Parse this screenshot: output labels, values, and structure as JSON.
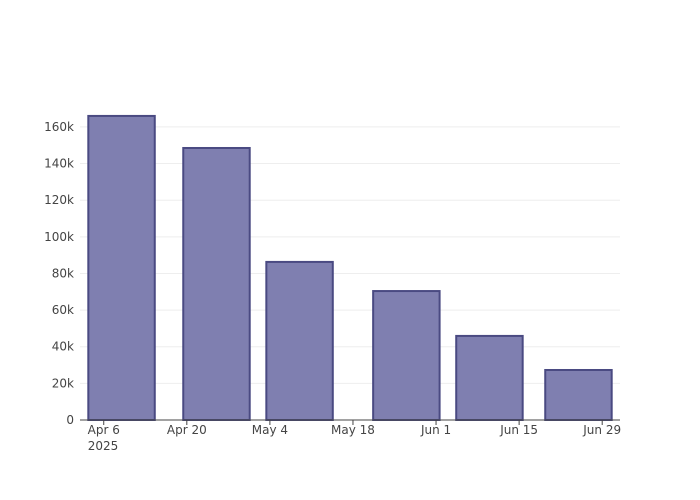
{
  "chart_data": {
    "type": "bar",
    "x": [
      "2025-04-09",
      "2025-04-25",
      "2025-05-09",
      "2025-05-27",
      "2025-06-10",
      "2025-06-25"
    ],
    "values": [
      166000,
      148500,
      86300,
      70400,
      45900,
      27300
    ],
    "color": "#7f7fb0",
    "edge_color": "#4a4a82",
    "xlim": [
      "2025-04-02",
      "2025-07-02"
    ],
    "xticks": [
      {
        "value": "2025-04-06",
        "label": "Apr 6\n2025"
      },
      {
        "value": "2025-04-20",
        "label": "Apr 20"
      },
      {
        "value": "2025-05-04",
        "label": "May 4"
      },
      {
        "value": "2025-05-18",
        "label": "May 18"
      },
      {
        "value": "2025-06-01",
        "label": "Jun 1"
      },
      {
        "value": "2025-06-15",
        "label": "Jun 15"
      },
      {
        "value": "2025-06-29",
        "label": "Jun 29"
      }
    ],
    "ylim": [
      0,
      174700
    ],
    "yticks": [
      0,
      {
        "value": 20000,
        "label": "20k"
      },
      {
        "value": 40000,
        "label": "40k"
      },
      {
        "value": 60000,
        "label": "60k"
      },
      {
        "value": 80000,
        "label": "80k"
      },
      {
        "value": 100000,
        "label": "100k"
      },
      {
        "value": 120000,
        "label": "120k"
      },
      {
        "value": 140000,
        "label": "140k"
      },
      {
        "value": 160000,
        "label": "160k"
      }
    ],
    "grid": true
  }
}
